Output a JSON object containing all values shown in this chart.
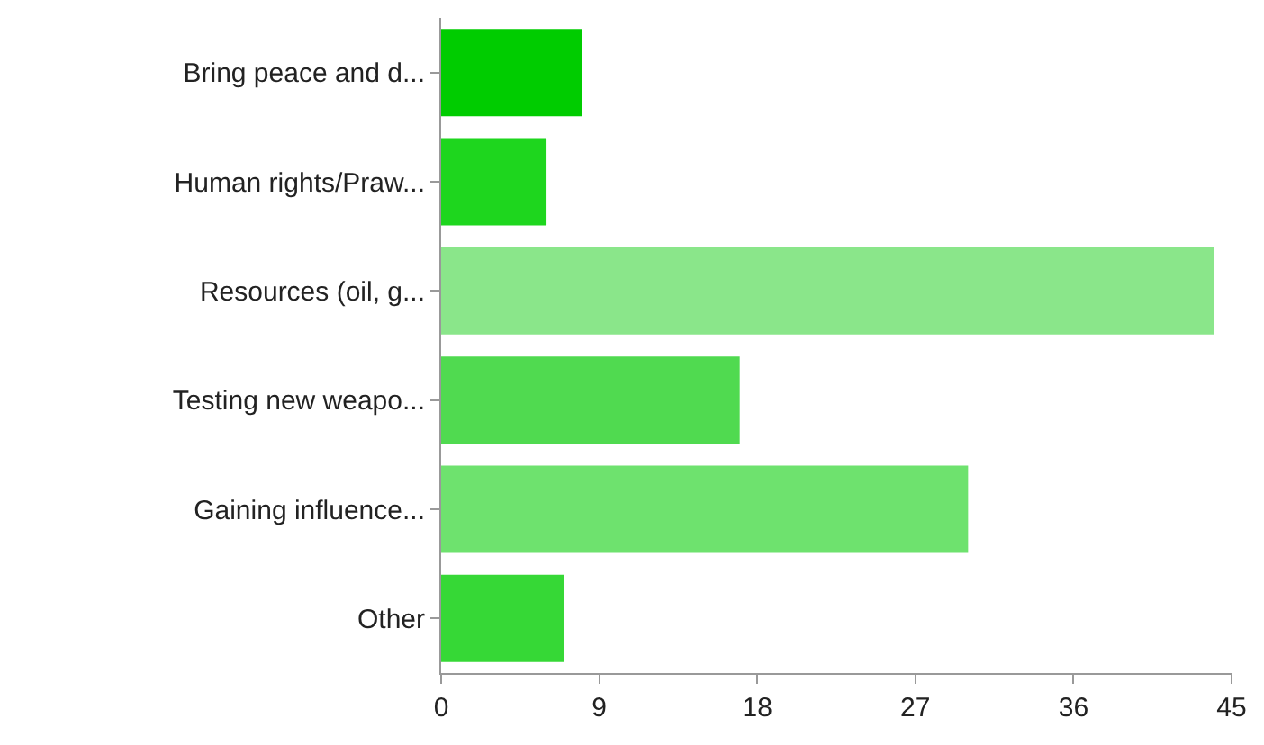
{
  "chart_data": {
    "type": "bar",
    "orientation": "horizontal",
    "categories": [
      "Bring peace and d...",
      "Human rights/Praw...",
      "Resources (oil, g...",
      "Testing new weapo...",
      "Gaining influence...",
      "Other"
    ],
    "values": [
      8,
      6,
      44,
      17,
      30,
      7
    ],
    "colors": [
      "#00cc00",
      "#1ed61e",
      "#8ae68a",
      "#50da50",
      "#6ee26e",
      "#36d836"
    ],
    "xlim": [
      0,
      45
    ],
    "xticks": [
      0,
      9,
      18,
      27,
      36,
      45
    ]
  }
}
